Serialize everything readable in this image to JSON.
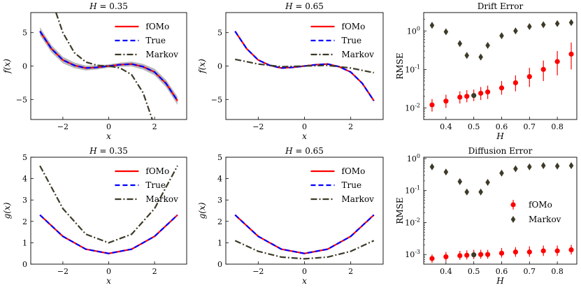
{
  "figure_title": "",
  "chart_data": [
    {
      "id": "f035",
      "type": "line",
      "title": "H = 0.35",
      "xlabel": "x",
      "ylabel": "f(x)",
      "xlim": [
        -3.4,
        3.4
      ],
      "ylim": [
        -8,
        8
      ],
      "xticks": [
        -2,
        0,
        2
      ],
      "yticks": [
        -5,
        0,
        5
      ],
      "legend_position": "upper-right",
      "series": [
        {
          "name": "fOMo",
          "color": "#ff0000",
          "style": "solid",
          "band": true,
          "x": [
            -3,
            -2.5,
            -2,
            -1.5,
            -1,
            -0.5,
            0,
            0.5,
            1,
            1.5,
            2,
            2.5,
            3
          ],
          "y": [
            5.2,
            2.6,
            0.9,
            0.1,
            -0.3,
            -0.2,
            0,
            0.2,
            0.3,
            -0.1,
            -0.9,
            -2.6,
            -5.2
          ]
        },
        {
          "name": "True",
          "color": "#0000ff",
          "style": "dashed",
          "x": [
            -3,
            -2.5,
            -2,
            -1.5,
            -1,
            -0.5,
            0,
            0.5,
            1,
            1.5,
            2,
            2.5,
            3
          ],
          "y": [
            5.2,
            2.6,
            0.9,
            0.1,
            -0.3,
            -0.2,
            0,
            0.2,
            0.3,
            -0.1,
            -0.9,
            -2.6,
            -5.2
          ]
        },
        {
          "name": "Markov",
          "color": "#3d3a28",
          "style": "dashdot",
          "x": [
            -2.3,
            -2,
            -1.5,
            -1,
            -0.5,
            0,
            0.5,
            1,
            1.5,
            1.9
          ],
          "y": [
            8.0,
            5.0,
            2.0,
            0.6,
            0.1,
            0,
            -0.3,
            -1.3,
            -4.0,
            -8.0
          ]
        }
      ]
    },
    {
      "id": "f065",
      "type": "line",
      "title": "H = 0.65",
      "xlabel": "x",
      "ylabel": "f(x)",
      "xlim": [
        -3.4,
        3.4
      ],
      "ylim": [
        -8,
        8
      ],
      "xticks": [
        -2,
        0,
        2
      ],
      "yticks": [
        -5,
        0,
        5
      ],
      "legend_position": "upper-right",
      "series": [
        {
          "name": "fOMo",
          "color": "#ff0000",
          "style": "solid",
          "x": [
            -3,
            -2.5,
            -2,
            -1.5,
            -1,
            -0.5,
            0,
            0.5,
            1,
            1.5,
            2,
            2.5,
            3
          ],
          "y": [
            5.2,
            2.6,
            0.9,
            0.1,
            -0.3,
            -0.2,
            0,
            0.2,
            0.3,
            -0.1,
            -0.9,
            -2.6,
            -5.2
          ]
        },
        {
          "name": "True",
          "color": "#0000ff",
          "style": "dashed",
          "x": [
            -3,
            -2.5,
            -2,
            -1.5,
            -1,
            -0.5,
            0,
            0.5,
            1,
            1.5,
            2,
            2.5,
            3
          ],
          "y": [
            5.2,
            2.6,
            0.9,
            0.1,
            -0.3,
            -0.2,
            0,
            0.2,
            0.3,
            -0.1,
            -0.9,
            -2.6,
            -5.2
          ]
        },
        {
          "name": "Markov",
          "color": "#3d3a28",
          "style": "dashdot",
          "x": [
            -3,
            -2,
            -1,
            0,
            1,
            2,
            3
          ],
          "y": [
            1.0,
            0.3,
            -0.1,
            0,
            0.1,
            -0.3,
            -1.0
          ]
        }
      ]
    },
    {
      "id": "drift",
      "type": "scatter",
      "title": "Drift Error",
      "xlabel": "H",
      "ylabel": "RMSE",
      "xlim": [
        0.32,
        0.87
      ],
      "yscale": "log",
      "ylim": [
        0.005,
        3
      ],
      "xticks": [
        0.4,
        0.5,
        0.6,
        0.7,
        0.8
      ],
      "xtick_labels": [
        "0.4",
        "0.5",
        "0.6",
        "0.7",
        "0.8"
      ],
      "yticks": [
        0.01,
        0.1,
        1
      ],
      "ytick_labels": [
        "10^-2",
        "10^-1",
        "10^0"
      ],
      "series": [
        {
          "name": "fOMo",
          "color": "#ff0000",
          "marker": "circle",
          "x": [
            0.35,
            0.4,
            0.45,
            0.475,
            0.5,
            0.525,
            0.55,
            0.6,
            0.65,
            0.7,
            0.75,
            0.8,
            0.85
          ],
          "y": [
            0.012,
            0.015,
            0.019,
            0.02,
            0.021,
            0.024,
            0.026,
            0.033,
            0.045,
            0.065,
            0.1,
            0.16,
            0.25
          ],
          "err_low": [
            0.008,
            0.01,
            0.013,
            0.014,
            0.015,
            0.016,
            0.017,
            0.022,
            0.027,
            0.035,
            0.05,
            0.07,
            0.1
          ],
          "err_high": [
            0.017,
            0.022,
            0.027,
            0.029,
            0.03,
            0.035,
            0.038,
            0.05,
            0.07,
            0.11,
            0.17,
            0.3,
            0.5
          ],
          "highlight_index": 4
        },
        {
          "name": "Markov",
          "color": "#3d3a28",
          "marker": "diamond",
          "x": [
            0.35,
            0.4,
            0.45,
            0.475,
            0.525,
            0.55,
            0.6,
            0.65,
            0.7,
            0.75,
            0.8,
            0.85
          ],
          "y": [
            1.4,
            0.95,
            0.47,
            0.23,
            0.21,
            0.42,
            0.75,
            1.0,
            1.3,
            1.45,
            1.55,
            1.65
          ]
        }
      ]
    },
    {
      "id": "g035",
      "type": "line",
      "title": "H = 0.35",
      "xlabel": "x",
      "ylabel": "g(x)",
      "xlim": [
        -3.4,
        3.4
      ],
      "ylim": [
        0,
        5
      ],
      "xticks": [
        -2,
        0,
        2
      ],
      "yticks": [
        0,
        1,
        2,
        3,
        4,
        5
      ],
      "legend_position": "upper-center",
      "series": [
        {
          "name": "fOMo",
          "color": "#ff0000",
          "style": "solid",
          "x": [
            -3,
            -2,
            -1,
            0,
            1,
            2,
            3
          ],
          "y": [
            2.3,
            1.3,
            0.7,
            0.5,
            0.7,
            1.3,
            2.3
          ]
        },
        {
          "name": "True",
          "color": "#0000ff",
          "style": "dashed",
          "x": [
            -3,
            -2,
            -1,
            0,
            1,
            2,
            3
          ],
          "y": [
            2.3,
            1.3,
            0.7,
            0.5,
            0.7,
            1.3,
            2.3
          ]
        },
        {
          "name": "Markov",
          "color": "#3d3a28",
          "style": "dashdot",
          "x": [
            -3,
            -2,
            -1,
            0,
            1,
            2,
            3
          ],
          "y": [
            4.6,
            2.6,
            1.4,
            1.0,
            1.4,
            2.6,
            4.6
          ]
        }
      ]
    },
    {
      "id": "g065",
      "type": "line",
      "title": "H = 0.65",
      "xlabel": "x",
      "ylabel": "g(x)",
      "xlim": [
        -3.4,
        3.4
      ],
      "ylim": [
        0,
        5
      ],
      "xticks": [
        -2,
        0,
        2
      ],
      "yticks": [
        0,
        1,
        2,
        3,
        4,
        5
      ],
      "legend_position": "upper-center",
      "series": [
        {
          "name": "fOMo",
          "color": "#ff0000",
          "style": "solid",
          "x": [
            -3,
            -2,
            -1,
            0,
            1,
            2,
            3
          ],
          "y": [
            2.3,
            1.3,
            0.7,
            0.5,
            0.7,
            1.3,
            2.3
          ]
        },
        {
          "name": "True",
          "color": "#0000ff",
          "style": "dashed",
          "x": [
            -3,
            -2,
            -1,
            0,
            1,
            2,
            3
          ],
          "y": [
            2.3,
            1.3,
            0.7,
            0.5,
            0.7,
            1.3,
            2.3
          ]
        },
        {
          "name": "Markov",
          "color": "#3d3a28",
          "style": "dashdot",
          "x": [
            -3,
            -2,
            -1,
            0,
            1,
            2,
            3
          ],
          "y": [
            1.1,
            0.6,
            0.33,
            0.25,
            0.33,
            0.6,
            1.1
          ]
        }
      ]
    },
    {
      "id": "diffusion",
      "type": "scatter",
      "title": "Diffusion Error",
      "xlabel": "H",
      "ylabel": "RMSE",
      "xlim": [
        0.32,
        0.87
      ],
      "yscale": "log",
      "ylim": [
        0.0005,
        1.1
      ],
      "xticks": [
        0.4,
        0.5,
        0.6,
        0.7,
        0.8
      ],
      "xtick_labels": [
        "0.4",
        "0.5",
        "0.6",
        "0.7",
        "0.8"
      ],
      "yticks": [
        0.001,
        0.01,
        0.1,
        1
      ],
      "ytick_labels": [
        "10^-3",
        "10^-2",
        "10^-1",
        "10^0"
      ],
      "legend_position": "center-right",
      "series": [
        {
          "name": "fOMo",
          "color": "#ff0000",
          "marker": "circle",
          "x": [
            0.35,
            0.4,
            0.45,
            0.475,
            0.5,
            0.525,
            0.55,
            0.6,
            0.65,
            0.7,
            0.75,
            0.8,
            0.85
          ],
          "y": [
            0.00075,
            0.00085,
            0.00092,
            0.00095,
            0.00098,
            0.001,
            0.001,
            0.0011,
            0.0012,
            0.0012,
            0.0013,
            0.0013,
            0.0014
          ],
          "err_low": [
            0.00055,
            0.00062,
            0.00068,
            0.0007,
            0.00072,
            0.00074,
            0.00074,
            0.0008,
            0.00085,
            0.00085,
            0.0009,
            0.0009,
            0.001
          ],
          "err_high": [
            0.001,
            0.0012,
            0.0013,
            0.00135,
            0.0014,
            0.0014,
            0.0014,
            0.0016,
            0.0017,
            0.0018,
            0.0019,
            0.0019,
            0.002
          ],
          "highlight_index": 4
        },
        {
          "name": "Markov",
          "color": "#3d3a28",
          "marker": "diamond",
          "x": [
            0.35,
            0.4,
            0.45,
            0.475,
            0.525,
            0.55,
            0.6,
            0.65,
            0.7,
            0.75,
            0.8,
            0.85
          ],
          "y": [
            0.55,
            0.38,
            0.19,
            0.09,
            0.09,
            0.18,
            0.35,
            0.48,
            0.55,
            0.6,
            0.58,
            0.6
          ]
        }
      ]
    }
  ]
}
